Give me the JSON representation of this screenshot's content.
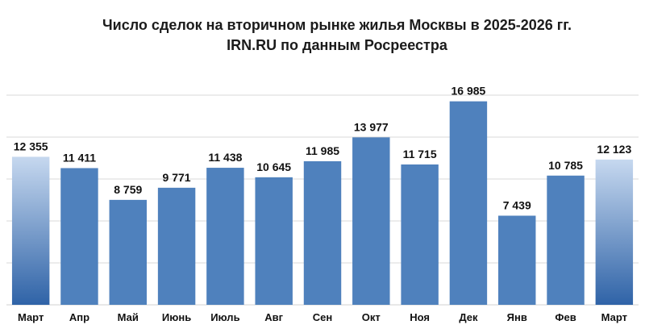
{
  "chart_data": {
    "type": "bar",
    "title": "Число сделок на вторичном рынке жилья Москвы в 2025-2026 гг.",
    "subtitle": "IRN.RU по данным Росреестра",
    "xlabel": "",
    "ylabel": "",
    "ylim": [
      0,
      21000
    ],
    "grid": true,
    "legend": "none",
    "categories": [
      "Март",
      "Апр",
      "Май",
      "Июнь",
      "Июль",
      "Авг",
      "Сен",
      "Окт",
      "Ноя",
      "Дек",
      "Янв",
      "Фев",
      "Март"
    ],
    "values": [
      12355,
      11411,
      8759,
      9771,
      11438,
      10645,
      11985,
      13977,
      11715,
      16985,
      7439,
      10785,
      12123
    ],
    "value_labels": [
      "12 355",
      "11 411",
      "8 759",
      "9 771",
      "11 438",
      "10 645",
      "11 985",
      "13 977",
      "11 715",
      "16 985",
      "7 439",
      "10 785",
      "12 123"
    ],
    "highlighted_indices": [
      0,
      12
    ],
    "colors": {
      "bar": "#4f81bd",
      "highlight_top": "#c6d8ef",
      "highlight_bottom": "#2f63a7",
      "grid": "#d9d9d9",
      "text": "#111111"
    }
  }
}
